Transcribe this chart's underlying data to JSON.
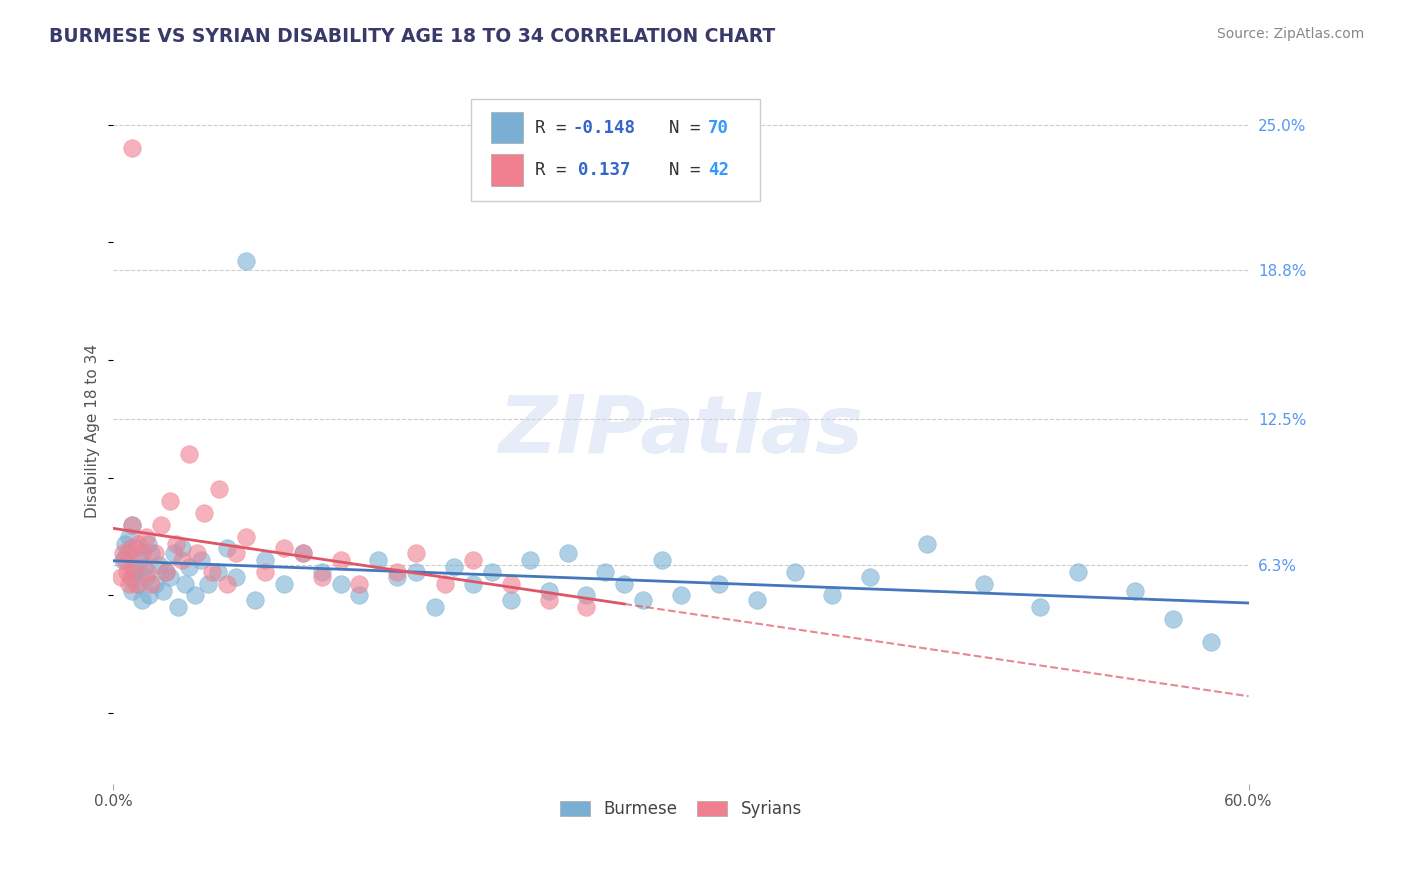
{
  "title": "BURMESE VS SYRIAN DISABILITY AGE 18 TO 34 CORRELATION CHART",
  "source": "Source: ZipAtlas.com",
  "ylabel": "Disability Age 18 to 34",
  "xlim": [
    0.0,
    0.6
  ],
  "ylim": [
    -0.03,
    0.27
  ],
  "yticks_right": [
    0.063,
    0.125,
    0.188,
    0.25
  ],
  "yticks_right_labels": [
    "6.3%",
    "12.5%",
    "18.8%",
    "25.0%"
  ],
  "burmese_R": -0.148,
  "burmese_N": 70,
  "syrian_R": 0.137,
  "syrian_N": 42,
  "burmese_color": "#7aafd4",
  "syrian_color": "#f08090",
  "burmese_line_color": "#4477bb",
  "syrian_line_color": "#dd5566",
  "watermark": "ZIPatlas",
  "background_color": "#FFFFFF",
  "grid_color": "#CCCCCC",
  "title_color": "#3A3A6A",
  "legend_box_color": "#CCCCCC",
  "burmese_x": [
    0.005,
    0.006,
    0.007,
    0.008,
    0.009,
    0.01,
    0.01,
    0.011,
    0.012,
    0.013,
    0.014,
    0.015,
    0.016,
    0.017,
    0.018,
    0.019,
    0.02,
    0.022,
    0.024,
    0.026,
    0.028,
    0.03,
    0.032,
    0.034,
    0.036,
    0.038,
    0.04,
    0.043,
    0.046,
    0.05,
    0.055,
    0.06,
    0.065,
    0.07,
    0.075,
    0.08,
    0.09,
    0.1,
    0.11,
    0.12,
    0.13,
    0.14,
    0.15,
    0.16,
    0.17,
    0.18,
    0.19,
    0.2,
    0.21,
    0.22,
    0.23,
    0.24,
    0.25,
    0.26,
    0.27,
    0.28,
    0.29,
    0.3,
    0.32,
    0.34,
    0.36,
    0.38,
    0.4,
    0.43,
    0.46,
    0.49,
    0.51,
    0.54,
    0.56,
    0.58
  ],
  "burmese_y": [
    0.065,
    0.072,
    0.068,
    0.075,
    0.058,
    0.08,
    0.052,
    0.06,
    0.07,
    0.055,
    0.065,
    0.048,
    0.062,
    0.058,
    0.072,
    0.05,
    0.068,
    0.055,
    0.063,
    0.052,
    0.06,
    0.058,
    0.068,
    0.045,
    0.07,
    0.055,
    0.062,
    0.05,
    0.065,
    0.055,
    0.06,
    0.07,
    0.058,
    0.192,
    0.048,
    0.065,
    0.055,
    0.068,
    0.06,
    0.055,
    0.05,
    0.065,
    0.058,
    0.06,
    0.045,
    0.062,
    0.055,
    0.06,
    0.048,
    0.065,
    0.052,
    0.068,
    0.05,
    0.06,
    0.055,
    0.048,
    0.065,
    0.05,
    0.055,
    0.048,
    0.06,
    0.05,
    0.058,
    0.072,
    0.055,
    0.045,
    0.06,
    0.052,
    0.04,
    0.03
  ],
  "syrian_x": [
    0.004,
    0.005,
    0.006,
    0.007,
    0.008,
    0.009,
    0.01,
    0.01,
    0.011,
    0.012,
    0.013,
    0.015,
    0.017,
    0.018,
    0.02,
    0.022,
    0.025,
    0.028,
    0.03,
    0.033,
    0.036,
    0.04,
    0.044,
    0.048,
    0.052,
    0.056,
    0.06,
    0.065,
    0.07,
    0.08,
    0.09,
    0.1,
    0.11,
    0.12,
    0.13,
    0.15,
    0.16,
    0.175,
    0.19,
    0.21,
    0.23,
    0.25
  ],
  "syrian_y": [
    0.058,
    0.068,
    0.065,
    0.06,
    0.055,
    0.07,
    0.08,
    0.24,
    0.062,
    0.055,
    0.072,
    0.068,
    0.075,
    0.06,
    0.055,
    0.068,
    0.08,
    0.06,
    0.09,
    0.072,
    0.065,
    0.11,
    0.068,
    0.085,
    0.06,
    0.095,
    0.055,
    0.068,
    0.075,
    0.06,
    0.07,
    0.068,
    0.058,
    0.065,
    0.055,
    0.06,
    0.068,
    0.055,
    0.065,
    0.055,
    0.048,
    0.045
  ]
}
